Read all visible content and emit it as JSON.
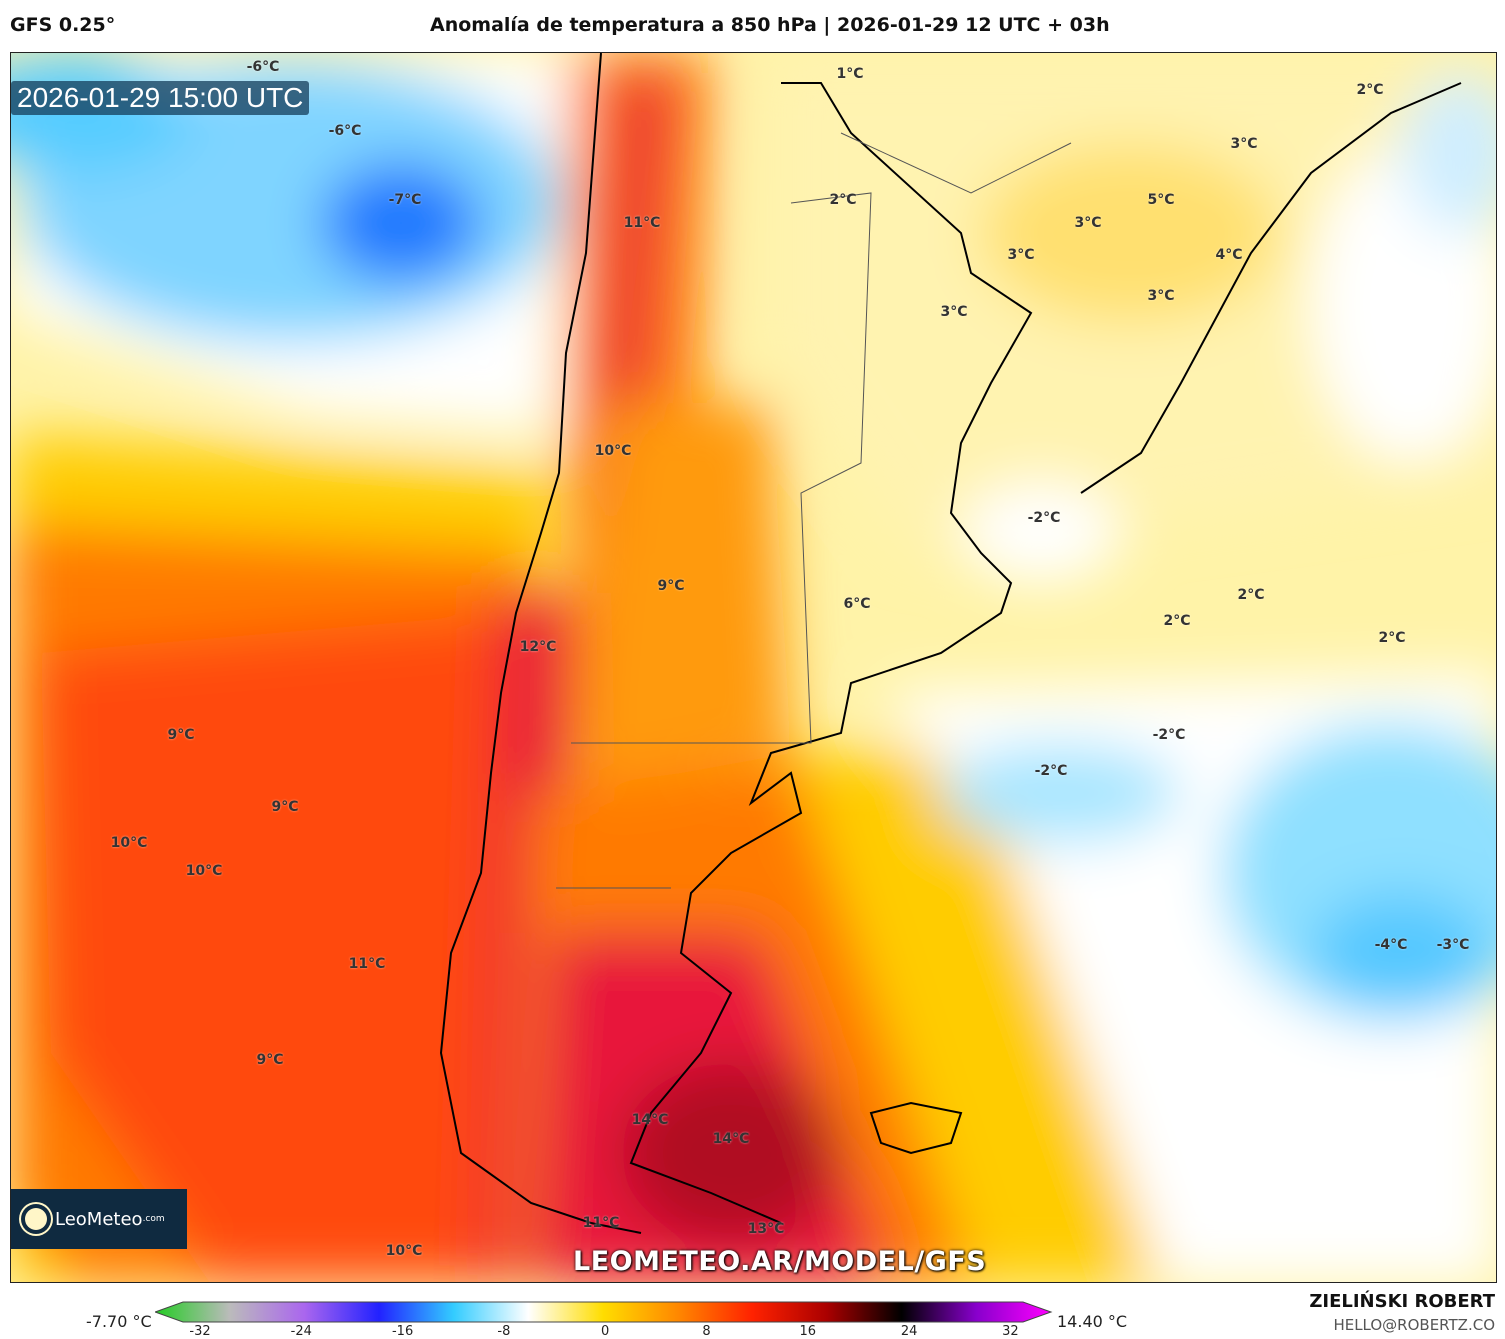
{
  "header": {
    "model": "GFS 0.25°",
    "title": "Anomalía de temperatura a 850 hPa | 2026-01-29 12 UTC + 03h"
  },
  "map": {
    "timestamp": "2026-01-29 15:00 UTC",
    "logo": {
      "name": "LeoMeteo",
      "suffix": ".com"
    },
    "watermark": "LEOMETEO.AR/MODEL/GFS",
    "contour_labels": [
      "-6°C",
      "-6°C",
      "-7°C",
      "1°C",
      "2°C",
      "3°C",
      "2°C",
      "11°C",
      "5°C",
      "3°C",
      "3°C",
      "4°C",
      "3°C",
      "3°C",
      "10°C",
      "-2°C",
      "9°C",
      "6°C",
      "2°C",
      "2°C",
      "2°C",
      "12°C",
      "9°C",
      "-2°C",
      "-2°C",
      "9°C",
      "10°C",
      "10°C",
      "-4°C",
      "-3°C",
      "11°C",
      "9°C",
      "14°C",
      "14°C",
      "13°C",
      "11°C",
      "10°C"
    ]
  },
  "colorbar": {
    "min_label": "-7.70 °C",
    "max_label": "14.40 °C",
    "ticks": [
      "-32",
      "-24",
      "-16",
      "-8",
      "0",
      "8",
      "16",
      "24",
      "32"
    ],
    "colors": [
      "#22cc22",
      "#bbbbbb",
      "#aa66ee",
      "#2222ff",
      "#33ccff",
      "#ffffff",
      "#ffdd00",
      "#ff8800",
      "#ff2200",
      "#aa0000",
      "#000000",
      "#8800cc",
      "#ff00ff"
    ]
  },
  "footer": {
    "author": "ZIELIŃSKI ROBERT",
    "email": "HELLO@ROBERTZ.CO"
  }
}
